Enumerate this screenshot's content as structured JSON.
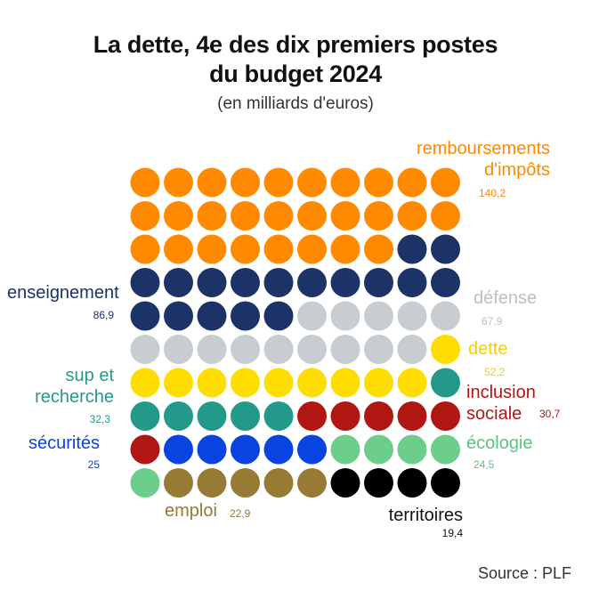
{
  "title_line1": "La dette, 4e des dix premiers postes",
  "title_line2": "du budget 2024",
  "subtitle": "(en milliards d'euros)",
  "source": "Source : PLF",
  "chart_data": {
    "type": "waffle",
    "columns": 10,
    "rows": 10,
    "categories": [
      {
        "label": "remboursements d'impôts",
        "label_line1": "remboursements",
        "label_line2": "d'impôts",
        "value": 140.2,
        "value_text": "140,2",
        "color": "#ff8a00",
        "dots": 28
      },
      {
        "label": "enseignement",
        "value": 86.9,
        "value_text": "86,9",
        "color": "#1b3366",
        "dots": 17
      },
      {
        "label": "défense",
        "value": 67.9,
        "value_text": "67,9",
        "color": "#c7cdd0",
        "dots": 14
      },
      {
        "label": "dette",
        "value": 52.2,
        "value_text": "52,2",
        "color": "#ffdd00",
        "dots": 10
      },
      {
        "label": "sup et recherche",
        "label_line1": "sup et",
        "label_line2": "recherche",
        "value": 32.3,
        "value_text": "32,3",
        "color": "#23998a",
        "dots": 6
      },
      {
        "label": "inclusion sociale",
        "label_line1": "inclusion",
        "label_line2": "sociale",
        "value": 30.7,
        "value_text": "30,7",
        "color": "#b01712",
        "dots": 6
      },
      {
        "label": "sécurités",
        "value": 25,
        "value_text": "25",
        "color": "#0a44e0",
        "dots": 5
      },
      {
        "label": "écologie",
        "value": 24.5,
        "value_text": "24,5",
        "color": "#6cce8a",
        "dots": 5
      },
      {
        "label": "emploi",
        "value": 22.9,
        "value_text": "22,9",
        "color": "#977a33",
        "dots": 5
      },
      {
        "label": "territoires",
        "value": 19.4,
        "value_text": "19,4",
        "color": "#000000",
        "dots": 4
      }
    ],
    "cells": [
      "ri",
      "ri",
      "ri",
      "ri",
      "ri",
      "ri",
      "ri",
      "ri",
      "ri",
      "ri",
      "ri",
      "ri",
      "ri",
      "ri",
      "ri",
      "ri",
      "ri",
      "ri",
      "ri",
      "ri",
      "ri",
      "ri",
      "ri",
      "ri",
      "ri",
      "ri",
      "ri",
      "ri",
      "en",
      "en",
      "en",
      "en",
      "en",
      "en",
      "en",
      "en",
      "en",
      "en",
      "en",
      "en",
      "en",
      "en",
      "en",
      "en",
      "en",
      "de",
      "de",
      "de",
      "de",
      "de",
      "de",
      "de",
      "de",
      "de",
      "de",
      "de",
      "de",
      "de",
      "de",
      "dt",
      "dt",
      "dt",
      "dt",
      "dt",
      "dt",
      "dt",
      "dt",
      "dt",
      "dt",
      "sr",
      "sr",
      "sr",
      "sr",
      "sr",
      "sr",
      "is",
      "is",
      "is",
      "is",
      "is",
      "is",
      "se",
      "se",
      "se",
      "se",
      "se",
      "ec",
      "ec",
      "ec",
      "ec",
      "ec",
      "em",
      "em",
      "em",
      "em",
      "em",
      "te",
      "te",
      "te",
      "te"
    ],
    "keys": {
      "ri": 0,
      "en": 1,
      "de": 2,
      "dt": 3,
      "sr": 4,
      "is": 5,
      "se": 6,
      "ec": 7,
      "em": 8,
      "te": 9
    }
  }
}
